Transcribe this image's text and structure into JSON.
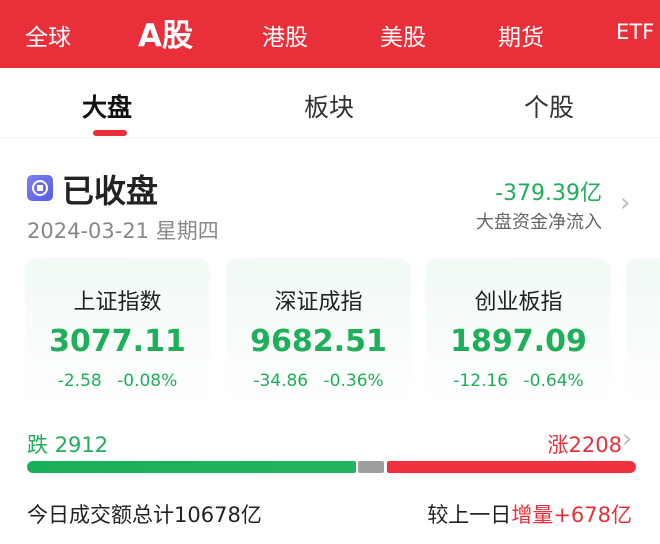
{
  "top_tabs": [
    {
      "label": "全球"
    },
    {
      "label": "A股",
      "active": true
    },
    {
      "label": "港股"
    },
    {
      "label": "美股"
    },
    {
      "label": "期货"
    },
    {
      "label": "ETF"
    }
  ],
  "sub_tabs": [
    {
      "label": "大盘",
      "active": true
    },
    {
      "label": "板块"
    },
    {
      "label": "个股"
    }
  ],
  "market": {
    "status": "已收盘",
    "status_icon": "closed-icon",
    "date": "2024-03-21 星期四",
    "net_flow": "-379.39亿",
    "net_flow_label": "大盘资金净流入"
  },
  "indices": [
    {
      "name": "上证指数",
      "value": "3077.11",
      "change": "-2.58",
      "pct": "-0.08%"
    },
    {
      "name": "深证成指",
      "value": "9682.51",
      "change": "-34.86",
      "pct": "-0.36%"
    },
    {
      "name": "创业板指",
      "value": "1897.09",
      "change": "-12.16",
      "pct": "-0.64%"
    }
  ],
  "breadth": {
    "down_label": "跌",
    "down": "2912",
    "up_label": "涨",
    "up": "2208"
  },
  "volume": {
    "label": "今日成交额总计",
    "value": "10678亿",
    "compare_label": "较上一日",
    "change_label": "增量",
    "change": "+678亿"
  },
  "colors": {
    "red": "#e9303a",
    "green": "#1fae5a",
    "gray": "#9e9e9e"
  }
}
